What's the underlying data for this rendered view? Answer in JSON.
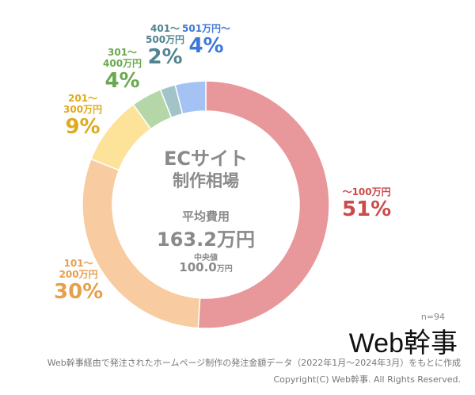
{
  "chart_data": {
    "type": "donut",
    "title": "ECサイト",
    "subtitle": "制作相場",
    "categories": [
      "〜100万円",
      "101〜200万円",
      "201〜300万円",
      "301〜400万円",
      "401〜500万円",
      "501万円〜"
    ],
    "values": [
      51,
      30,
      9,
      4,
      2,
      4
    ],
    "unit": "%",
    "colors": [
      "#e8979a",
      "#f8cba0",
      "#fde39a",
      "#b5d7a8",
      "#a2c4c9",
      "#a4c2f4"
    ],
    "label_colors": [
      "#cc4a4a",
      "#e6a04c",
      "#dfaa1c",
      "#6aa84f",
      "#4f8490",
      "#3c78d8"
    ],
    "labels": [
      {
        "range": "〜100万円",
        "pct": "51%"
      },
      {
        "range1": "101〜",
        "range2": "200万円",
        "pct": "30%"
      },
      {
        "range1": "201〜",
        "range2": "300万円",
        "pct": "9%"
      },
      {
        "range1": "301〜",
        "range2": "400万円",
        "pct": "4%"
      },
      {
        "range1": "401〜",
        "range2": "500万円",
        "pct": "2%"
      },
      {
        "range": "501万円〜",
        "pct": "4%"
      }
    ],
    "legend": "none"
  },
  "center": {
    "title": "ECサイト",
    "subtitle": "制作相場",
    "avg_label": "平均費用",
    "avg_value": "163.2万円",
    "median_label": "中央値",
    "median_value": "100.0",
    "median_unit": "万円"
  },
  "sample": "n=94",
  "logo": "Web幹事",
  "footer": {
    "source": "Web幹事経由で発注されたホームページ制作の発注金額データ（2022年1月〜2024年3月）をもとに作成",
    "copyright": "Copyright(C) Web幹事. All Rights Reserved."
  }
}
